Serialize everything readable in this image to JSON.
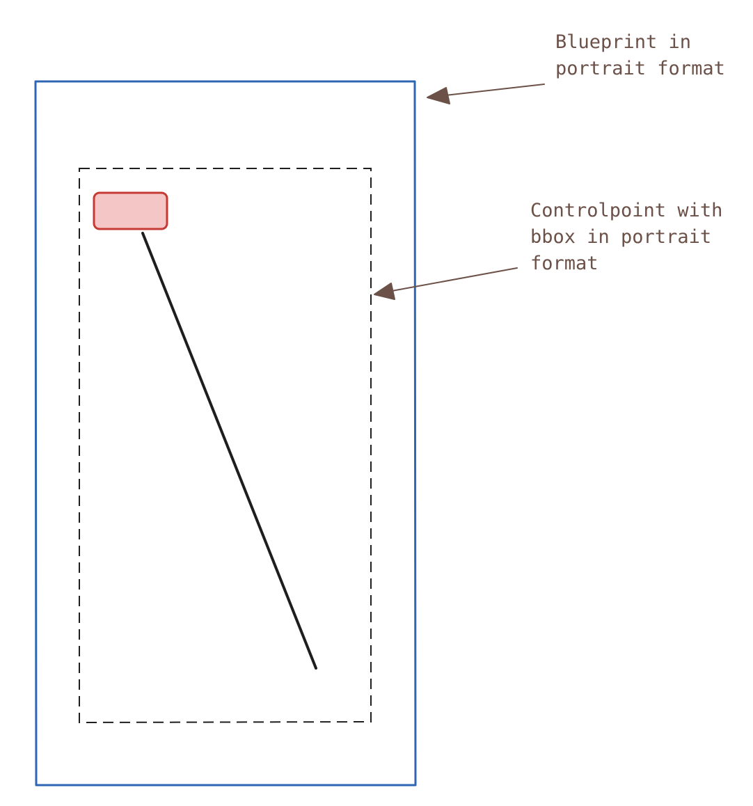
{
  "annotations": {
    "blueprint": {
      "lines": [
        "Blueprint in",
        "portrait format"
      ]
    },
    "controlpoint": {
      "lines": [
        "Controlpoint with",
        "bbox in portrait",
        "format"
      ]
    }
  },
  "colors": {
    "blueprint_border": "#2f66b3",
    "bbox_border": "#1e1e1e",
    "marker_fill": "#f5c6c6",
    "marker_border": "#c53a35",
    "connector_line": "#1e1e1e",
    "annotation_text": "#6b5148",
    "arrow": "#6b5148"
  }
}
